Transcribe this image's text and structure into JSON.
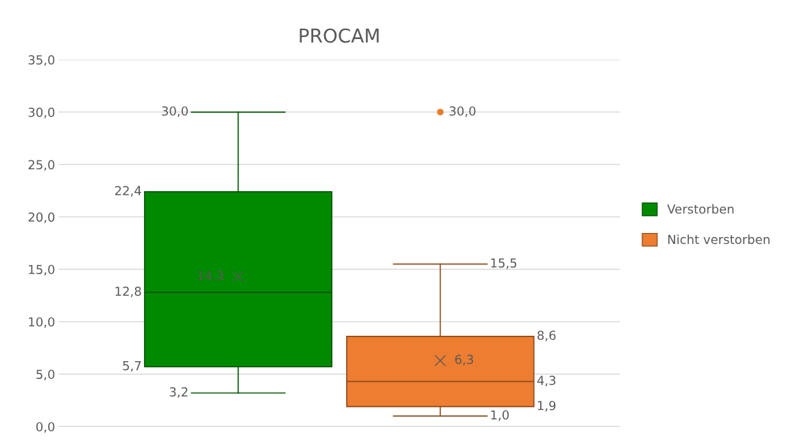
{
  "chart_data": {
    "type": "box",
    "title": "PROCAM",
    "categories": [
      null
    ],
    "series": [
      {
        "name": "Verstorben",
        "color": "#008a00",
        "boxes": [
          {
            "low": 3.2,
            "q1": 5.7,
            "median": 12.8,
            "q3": 22.4,
            "high": 30.0,
            "mean": 14.3
          }
        ],
        "value_labels": [
          [
            "3,2",
            "5,7",
            "12,8",
            "22,4",
            "30,0",
            "14,3"
          ]
        ]
      },
      {
        "name": "Nicht verstorben",
        "color": "#ed7d31",
        "boxes": [
          {
            "low": 1.0,
            "q1": 1.9,
            "median": 4.3,
            "q3": 8.6,
            "high": 15.5,
            "mean": 6.3,
            "outliers": [
              30.0
            ]
          }
        ],
        "value_labels": [
          [
            "1,0",
            "1,9",
            "4,3",
            "8,6",
            "15,5",
            "6,3",
            "30,0"
          ]
        ]
      }
    ],
    "ylim": [
      0,
      35
    ],
    "yticks": [
      {
        "value": 0,
        "label": "0,0"
      },
      {
        "value": 5,
        "label": "5,0"
      },
      {
        "value": 10,
        "label": "10,0"
      },
      {
        "value": 15,
        "label": "15,0"
      },
      {
        "value": 20,
        "label": "20,0"
      },
      {
        "value": 25,
        "label": "25,0"
      },
      {
        "value": 30,
        "label": "30,0"
      },
      {
        "value": 35,
        "label": "35,0"
      }
    ],
    "grid": "y",
    "legend": "right"
  }
}
